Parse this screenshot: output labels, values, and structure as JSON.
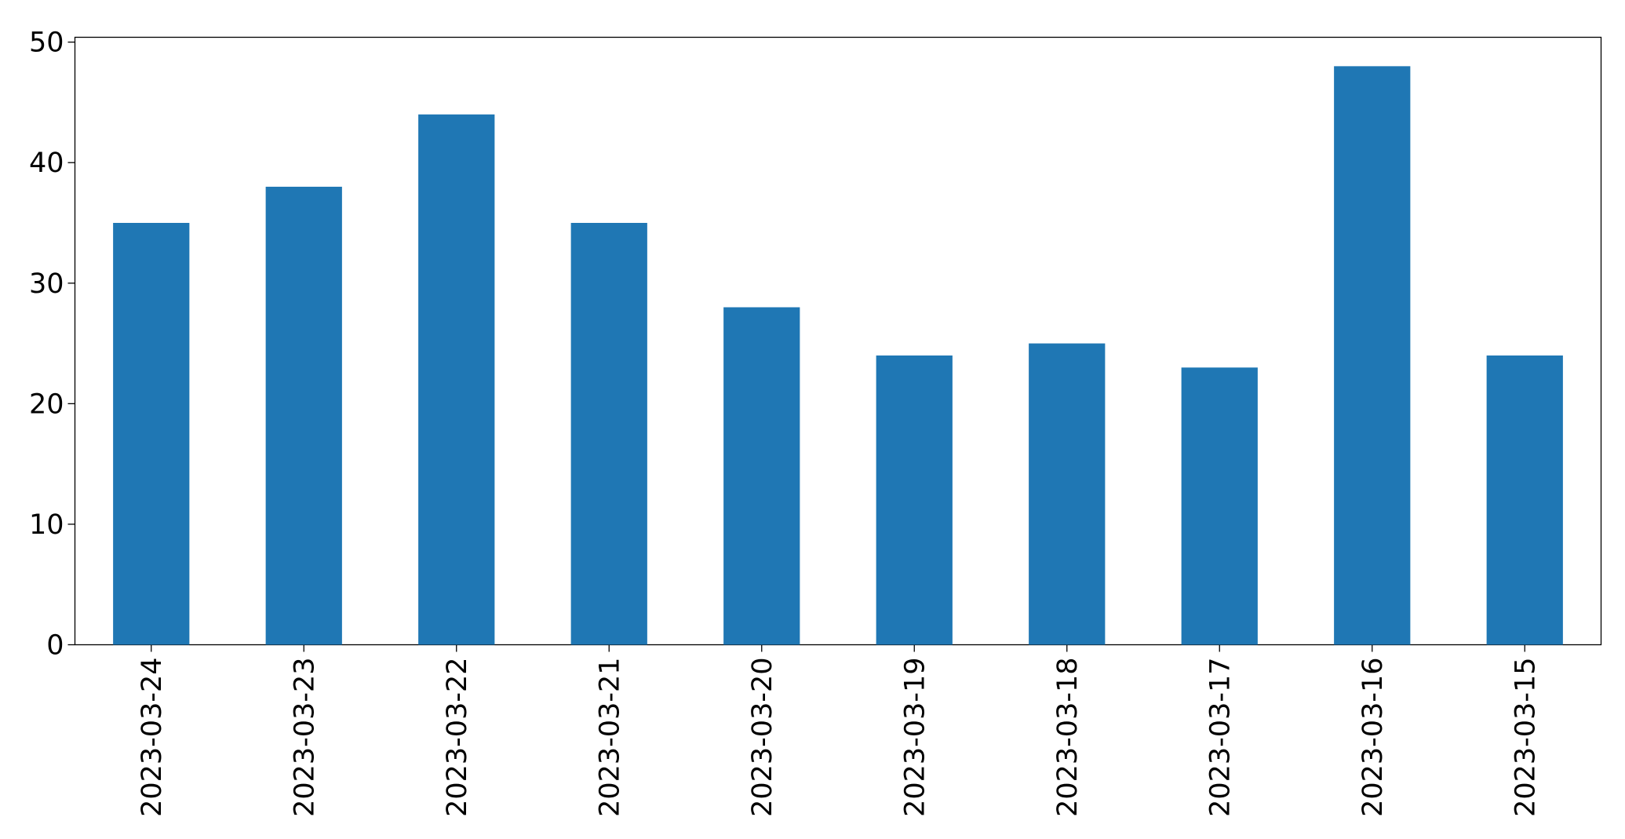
{
  "chart_data": {
    "type": "bar",
    "categories": [
      "2023-03-24",
      "2023-03-23",
      "2023-03-22",
      "2023-03-21",
      "2023-03-20",
      "2023-03-19",
      "2023-03-18",
      "2023-03-17",
      "2023-03-16",
      "2023-03-15"
    ],
    "values": [
      35,
      38,
      44,
      35,
      28,
      24,
      25,
      23,
      48,
      24
    ],
    "color": "#1f77b4",
    "ylim": [
      0,
      50.4
    ],
    "yticks": [
      0,
      10,
      20,
      30,
      40,
      50
    ],
    "grid": false
  }
}
